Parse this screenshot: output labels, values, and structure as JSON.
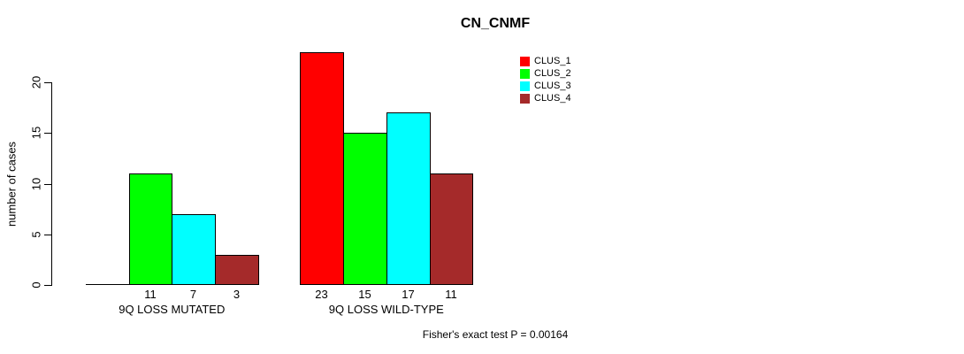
{
  "chart_data": {
    "type": "bar",
    "title": "CN_CNMF",
    "ylabel": "number of cases",
    "xlabel": "",
    "categories": [
      "9Q LOSS MUTATED",
      "9Q LOSS WILD-TYPE"
    ],
    "series": [
      {
        "name": "CLUS_1",
        "color": "#FF0000",
        "values": [
          0,
          23
        ]
      },
      {
        "name": "CLUS_2",
        "color": "#00FF00",
        "values": [
          11,
          15
        ]
      },
      {
        "name": "CLUS_3",
        "color": "#00FFFF",
        "values": [
          7,
          17
        ]
      },
      {
        "name": "CLUS_4",
        "color": "#A52A2A",
        "values": [
          3,
          11
        ]
      }
    ],
    "yticks": [
      0,
      5,
      10,
      15,
      20
    ],
    "ylim": [
      0,
      23
    ],
    "grid": false,
    "legend_position": "top-right",
    "bar_value_labels_shown": true,
    "annotation": "Fisher's exact test P = 0.00164",
    "colors": {
      "background": "#FFFFFF",
      "axis": "#000000",
      "text": "#000000"
    }
  }
}
